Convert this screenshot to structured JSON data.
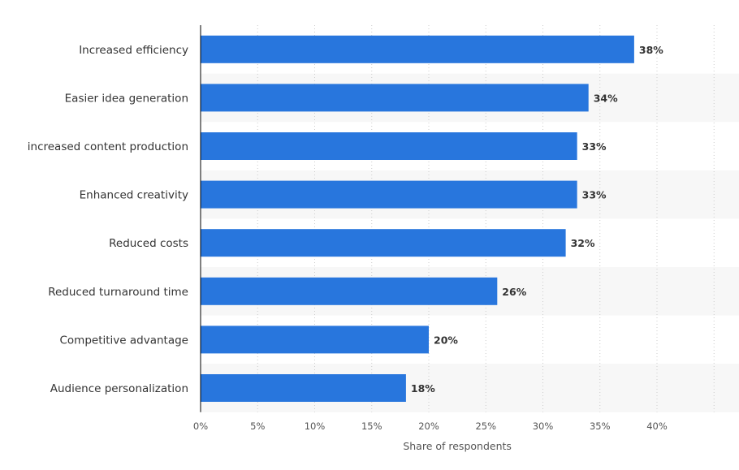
{
  "chart_data": {
    "type": "bar",
    "orientation": "horizontal",
    "categories": [
      "Increased efficiency",
      "Easier idea generation",
      "increased content production",
      "Enhanced creativity",
      "Reduced costs",
      "Reduced turnaround time",
      "Competitive advantage",
      "Audience personalization"
    ],
    "values": [
      38,
      34,
      33,
      33,
      32,
      26,
      20,
      18
    ],
    "value_labels": [
      "38%",
      "34%",
      "33%",
      "33%",
      "32%",
      "26%",
      "20%",
      "18%"
    ],
    "title": "",
    "xlabel": "Share of respondents",
    "ylabel": "",
    "xlim": [
      0,
      45
    ],
    "ticks": [
      0,
      5,
      10,
      15,
      20,
      25,
      30,
      35,
      40
    ],
    "tick_labels": [
      "0%",
      "5%",
      "10%",
      "15%",
      "20%",
      "25%",
      "30%",
      "35%",
      "40%"
    ],
    "grid": true,
    "legend": "none",
    "colors": {
      "bar": "#2876DD",
      "band": "#F7F7F7",
      "grid": "#CCCCCC",
      "axis": "#000000"
    }
  }
}
